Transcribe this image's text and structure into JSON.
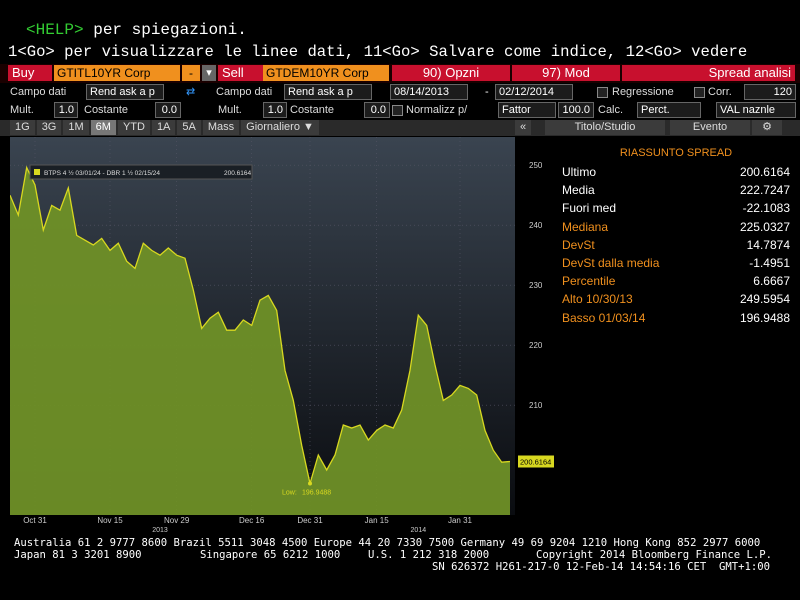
{
  "help_line": {
    "key": "<HELP>",
    "text": "per spiegazioni."
  },
  "instructions": "1<Go> per visualizzare le linee dati, 11<Go> Salvare come indice, 12<Go> vedere",
  "toolbar": {
    "buy": "Buy",
    "buy_ticker": "GTITL10YR Corp",
    "minus": "-",
    "sell": "Sell",
    "sell_ticker": "GTDEM10YR Corp",
    "options": "90) Opzni",
    "mod": "97) Mod",
    "view": "Spread analisi",
    "field_label_1": "Campo dati",
    "field_1": "Rend ask a p",
    "field_label_2": "Campo dati",
    "field_2": "Rend ask a p",
    "start_date": "08/14/2013",
    "date_sep": "-",
    "end_date": "02/12/2014",
    "regression": "Regressione",
    "corr": "Corr.",
    "corr_value": "120",
    "mult_label_1": "Mult.",
    "mult_1": "1.0",
    "const_label_1": "Costante",
    "const_1": "0.0",
    "mult_label_2": "Mult.",
    "mult_2": "1.0",
    "const_label_2": "Costante",
    "const_2": "0.0",
    "normalize": "Normalizz p/",
    "factor": "Fattor",
    "factor_value": "100.0",
    "calc": "Calc.",
    "calc_value": "Perct.",
    "currency": "VAL naznle"
  },
  "tabs": [
    "1G",
    "3G",
    "1M",
    "6M",
    "YTD",
    "1A",
    "5A",
    "Mass",
    "Giornaliero ▼"
  ],
  "panel_tabs": {
    "collapse": "«",
    "study": "Titolo/Studio",
    "event": "Evento"
  },
  "chart_data": {
    "type": "area",
    "series": [
      {
        "name": "BTPS 4 ½ 03/01/24 - DBR 1 ½ 02/15/24",
        "color": "#d8d820",
        "fill": "#6f9027",
        "values": [
          245,
          241.7,
          249.5954,
          246.7,
          239.2,
          243.3,
          242.5,
          246.2,
          238.3,
          237.5,
          236.7,
          237.8,
          235.8,
          237,
          234,
          232.8,
          237,
          235.8,
          235,
          236.2,
          235,
          234.5,
          229.2,
          222.8,
          224.5,
          225.5,
          222.5,
          222.5,
          224.2,
          223.3,
          227.5,
          228.3,
          225.8,
          215.8,
          210.8,
          203.3,
          196.9488,
          201.7,
          199.2,
          201.7,
          206.7,
          206.2,
          206.7,
          204.2,
          205.8,
          206.7,
          206.2,
          209.2,
          215.8,
          225,
          223.3,
          216.7,
          210.8,
          211.7,
          213.3,
          212.8,
          211.7,
          205.8,
          202.5,
          200.5,
          200.6164
        ]
      }
    ],
    "categories": [
      null,
      null,
      null,
      "Oct 31",
      null,
      null,
      null,
      null,
      null,
      null,
      null,
      null,
      "Nov 15",
      null,
      null,
      null,
      null,
      null,
      null,
      null,
      "Nov 29",
      null,
      null,
      null,
      null,
      null,
      null,
      null,
      null,
      "Dec 16",
      null,
      null,
      null,
      null,
      null,
      null,
      "Dec 31",
      null,
      null,
      null,
      null,
      null,
      null,
      null,
      "Jan 15",
      null,
      null,
      null,
      null,
      null,
      null,
      null,
      null,
      null,
      "Jan 31",
      null,
      null,
      null,
      null,
      null,
      null
    ],
    "year_labels": [
      "2013",
      "2014"
    ],
    "low_label": "Low:",
    "ylim": [
      191.7,
      254.7
    ],
    "yticks": [
      210,
      220,
      230,
      240,
      250
    ],
    "grid": true
  },
  "summary": {
    "title": "RIASSUNTO SPREAD",
    "rows": [
      [
        "Ultimo",
        "200.6164"
      ],
      [
        "Media",
        "222.7247"
      ],
      [
        "Fuori med",
        "-22.1083"
      ],
      [
        "Mediana",
        "225.0327"
      ],
      [
        "DevSt",
        "14.7874"
      ],
      [
        "DevSt dalla media",
        "-1.4951"
      ],
      [
        "Percentile",
        "6.6667"
      ],
      [
        "Alto 10/30/13",
        "249.5954"
      ],
      [
        "Basso 01/03/14",
        "196.9488"
      ]
    ]
  },
  "footer": [
    "Australia 61 2 9777 8600 Brazil 5511 3048 4500 Europe 44 20 7330 7500 Germany 49 69 9204 1210 Hong Kong 852 2977 6000",
    "Japan 81 3 3201 8900",
    "Singapore 65 6212 1000",
    "U.S. 1 212 318 2000",
    "Copyright 2014 Bloomberg Finance L.P.",
    "SN 626372 H261-217-0 12-Feb-14 14:54:16 CET  GMT+1:00"
  ]
}
